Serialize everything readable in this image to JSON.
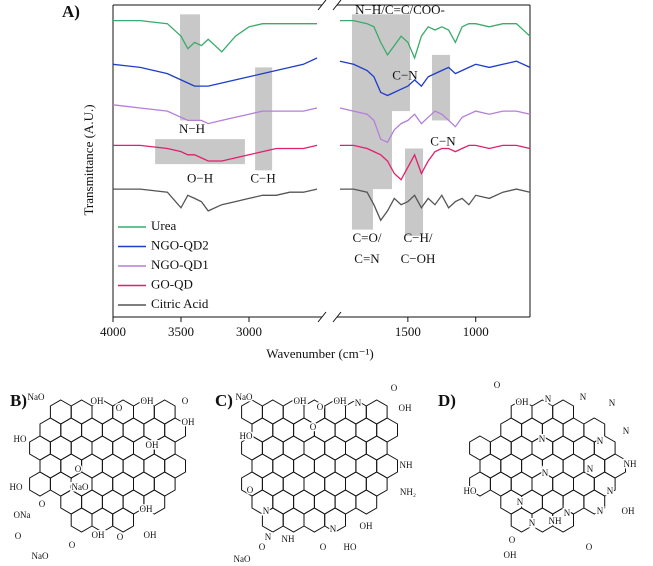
{
  "chart_data": {
    "type": "line",
    "panel_label": "A)",
    "x_label": "Wavenumber (cm⁻¹)",
    "y_label": "Transmittance (A.U.)",
    "x": [
      4000,
      3800,
      3600,
      3500,
      3450,
      3400,
      3350,
      3300,
      3200,
      3100,
      3000,
      2900,
      2800,
      2700,
      2600,
      2500,
      2000,
      1900,
      1800,
      1750,
      1700,
      1650,
      1600,
      1550,
      1500,
      1450,
      1400,
      1350,
      1300,
      1250,
      1200,
      1150,
      1100,
      1050,
      1000,
      900,
      800,
      700,
      600
    ],
    "xlim": [
      [
        4000,
        2500
      ],
      [
        2000,
        600
      ]
    ],
    "xticks": [
      4000,
      3500,
      3000,
      1500,
      1000
    ],
    "ylim": [
      0,
      100
    ],
    "legend": "lower left",
    "series": [
      {
        "name": "Urea",
        "color": "#3aab6a",
        "values": [
          95,
          95,
          94,
          90,
          86,
          88,
          87,
          89,
          85,
          90,
          93,
          94,
          94,
          94,
          94,
          94,
          95,
          95,
          94,
          93,
          88,
          84,
          87,
          90,
          88,
          83,
          90,
          93,
          92,
          93,
          92,
          88,
          93,
          94,
          94,
          93,
          94,
          94,
          90
        ]
      },
      {
        "name": "NGO-QD2",
        "color": "#1e3cc8",
        "values": [
          81,
          80,
          78,
          76,
          75,
          74,
          74,
          74,
          75,
          76,
          77,
          78,
          79,
          80,
          81,
          83,
          82,
          81,
          79,
          77,
          72,
          71,
          72,
          73,
          74,
          76,
          74,
          77,
          78,
          79,
          80,
          78,
          79,
          80,
          81,
          80,
          81,
          82,
          80
        ]
      },
      {
        "name": "NGO-QD1",
        "color": "#b47fd8",
        "values": [
          68,
          67,
          66,
          64,
          63,
          63,
          63,
          62,
          63,
          64,
          65,
          66,
          66,
          66,
          66,
          67,
          67,
          66,
          65,
          63,
          57,
          56,
          60,
          62,
          63,
          65,
          62,
          64,
          66,
          65,
          63,
          61,
          64,
          65,
          66,
          65,
          66,
          66,
          65
        ]
      },
      {
        "name": "GO-QD",
        "color": "#e21f6c",
        "values": [
          55,
          55,
          54,
          53,
          52,
          52,
          51,
          50,
          50,
          51,
          52,
          53,
          54,
          54,
          54,
          55,
          55,
          55,
          54,
          53,
          52,
          50,
          46,
          44,
          48,
          52,
          46,
          50,
          53,
          54,
          54,
          53,
          54,
          55,
          55,
          54,
          55,
          55,
          54
        ]
      },
      {
        "name": "Citric Acid",
        "color": "#555555",
        "values": [
          41,
          41,
          40,
          35,
          39,
          38,
          37,
          34,
          36,
          37,
          38,
          39,
          39,
          40,
          40,
          41,
          41,
          41,
          40,
          36,
          31,
          34,
          38,
          36,
          37,
          39,
          35,
          38,
          36,
          39,
          35,
          37,
          38,
          36,
          39,
          38,
          40,
          41,
          40
        ]
      }
    ],
    "bands": [
      {
        "x": [
          3507,
          3360
        ],
        "y": [
          97,
          63
        ]
      },
      {
        "x": [
          2955,
          2830
        ],
        "y": [
          80,
          47
        ]
      },
      {
        "x": [
          3690,
          3030
        ],
        "y": [
          57,
          49
        ]
      },
      {
        "x": [
          1912,
          1757
        ],
        "y": [
          97,
          28
        ]
      },
      {
        "x": [
          1757,
          1617
        ],
        "y": [
          97,
          41
        ]
      },
      {
        "x": [
          1617,
          1484
        ],
        "y": [
          97,
          66
        ]
      },
      {
        "x": [
          1521,
          1388
        ],
        "y": [
          54,
          26
        ]
      },
      {
        "x": [
          1322,
          1189
        ],
        "y": [
          84,
          63
        ]
      }
    ],
    "annotations": [
      {
        "lines": [
          "N−H"
        ],
        "x": 3419,
        "y": 60
      },
      {
        "lines": [
          "O−H"
        ],
        "x": 3360,
        "y": 44
      },
      {
        "lines": [
          "C−H"
        ],
        "x": 2897,
        "y": 44
      },
      {
        "lines": [
          "N−H/C=C/COO-"
        ],
        "x": 1558,
        "y": 98
      },
      {
        "lines": [
          "C−N"
        ],
        "x": 1521,
        "y": 77
      },
      {
        "lines": [
          "C−N"
        ],
        "x": 1241,
        "y": 56
      },
      {
        "lines": [
          "C=O/",
          "C=N"
        ],
        "x": 1801,
        "y": 25
      },
      {
        "lines": [
          "C−H/",
          "C−OH"
        ],
        "x": 1425,
        "y": 25
      }
    ]
  },
  "structures": [
    {
      "label": "B)",
      "atoms": [
        "NaO",
        "OH",
        "O",
        "OH",
        "O",
        "OH",
        "HO",
        "OH",
        "O",
        "HO",
        "NaO",
        "O",
        "ONa",
        "OH",
        "O",
        "OH",
        "O",
        "OH",
        "NaO",
        "O"
      ]
    },
    {
      "label": "C)",
      "atoms": [
        "NaO",
        "OH",
        "O",
        "OH",
        "N",
        "O",
        "OH",
        "HO",
        "O",
        "NH",
        "NH₂",
        "O",
        "N",
        "N",
        "NH",
        "N",
        "O",
        "HO",
        "OH",
        "O",
        "NaO"
      ]
    },
    {
      "label": "D)",
      "atoms": [
        "O",
        "OH",
        "N",
        "N",
        "N",
        "N",
        "NH",
        "N",
        "N",
        "N",
        "N",
        "HO",
        "N",
        "N",
        "NH",
        "N",
        "N",
        "OH",
        "N",
        "O",
        "OH",
        "O"
      ]
    }
  ]
}
